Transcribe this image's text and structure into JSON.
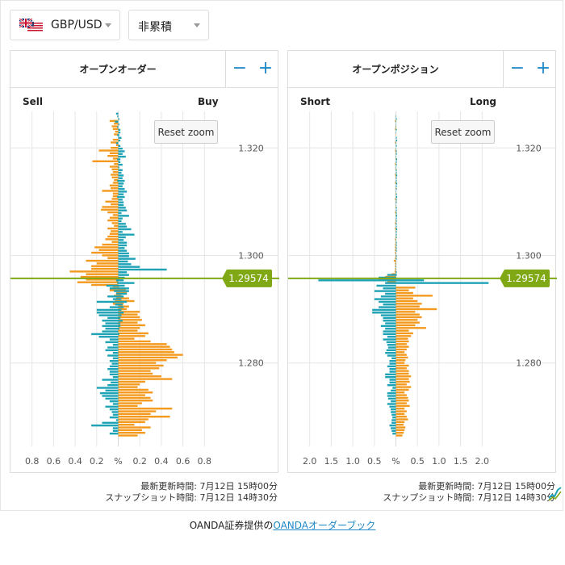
{
  "toolbar": {
    "pair_label": "GBP/USD",
    "mode_label": "非累積",
    "flag_icon": "uk-us-flag-icon"
  },
  "current_price": "1.29574",
  "colors": {
    "teal": "#1ea2b6",
    "orange": "#f39a1e",
    "price_line": "#7fa814",
    "zoom_button": "#1e88c7",
    "grid": "#e6e6e6"
  },
  "order_panel": {
    "title": "オープンオーダー",
    "left_label": "Sell",
    "right_label": "Buy",
    "reset_label": "Reset zoom",
    "minus_label": "−",
    "plus_label": "+",
    "updated": "最新更新時間: 7月12日 15時00分",
    "snapshot": "スナップショット時間: 7月12日 14時30分"
  },
  "position_panel": {
    "title": "オープンポジション",
    "left_label": "Short",
    "right_label": "Long",
    "reset_label": "Reset zoom",
    "minus_label": "−",
    "plus_label": "+",
    "updated": "最新更新時間: 7月12日 15時00分",
    "snapshot": "スナップショット時間: 7月12日 14時30分"
  },
  "footer": {
    "prefix": "OANDA証券提供の",
    "link": "OANDAオーダーブック"
  },
  "chart_data": [
    {
      "type": "bar",
      "orientation": "horizontal",
      "price_axis": {
        "min": 1.2645,
        "max": 1.3268,
        "ticks": [
          "1.320",
          "1.300",
          "1.280"
        ],
        "tick_values": [
          1.32,
          1.3,
          1.28
        ]
      },
      "x_axis": {
        "min": -1.0,
        "max": 1.0,
        "ticks": [
          "0.8",
          "0.6",
          "0.4",
          "0.2",
          "%",
          "0.2",
          "0.4",
          "0.6",
          "0.8"
        ],
        "tick_values": [
          -0.8,
          -0.6,
          -0.4,
          -0.2,
          0,
          0.2,
          0.4,
          0.6,
          0.8
        ]
      },
      "current_price": 1.29574,
      "price_step": 0.0005,
      "price_start": 1.3262,
      "teal_left": [
        0.02,
        0.01,
        0,
        0.03,
        0,
        0.01,
        0,
        0,
        0.01,
        0,
        0,
        0.02,
        0,
        0,
        0,
        0,
        0,
        0.01,
        0,
        0,
        0,
        0,
        0,
        0,
        0,
        0.01,
        0,
        0,
        0,
        0,
        0,
        0.01,
        0,
        0,
        0,
        0,
        0,
        0,
        0,
        0,
        0,
        0,
        0,
        0,
        0,
        0,
        0,
        0,
        0,
        0,
        0,
        0,
        0,
        0,
        0,
        0,
        0,
        0,
        0,
        0,
        0,
        0,
        0.02,
        0.01,
        0.11,
        0.08,
        0.04,
        0.02,
        0.1,
        0.05,
        0.2,
        0.03,
        0.08,
        0.2,
        0.2,
        0.18,
        0.1,
        0.15,
        0.12,
        0.15,
        0.12,
        0.15,
        0.25,
        0.18,
        0.08,
        0.12,
        0.05,
        0.1,
        0.12,
        0.05,
        0.1,
        0.05,
        0.08,
        0.06,
        0.08,
        0.1,
        0.08,
        0.08,
        0.05,
        0.15,
        0.07,
        0.1,
        0.2,
        0.12,
        0.17,
        0.15,
        0.12,
        0.08,
        0.05,
        0.12,
        0.08,
        0.06,
        0.05,
        0.08,
        0.02,
        0.15,
        0.25,
        0.05,
        0.05,
        0.08
      ],
      "teal_right": [
        0,
        0,
        0.01,
        0,
        0.01,
        0,
        0.02,
        0.02,
        0.01,
        0.03,
        0.02,
        0,
        0.02,
        0.04,
        0.06,
        0.04,
        0.07,
        0.02,
        0.02,
        0.04,
        0.01,
        0.04,
        0.03,
        0.05,
        0.04,
        0.06,
        0.05,
        0.04,
        0.06,
        0.08,
        0.05,
        0.06,
        0.04,
        0.05,
        0.05,
        0.07,
        0.08,
        0.03,
        0.1,
        0.04,
        0.03,
        0.07,
        0.08,
        0.12,
        0.04,
        0.15,
        0.07,
        0.05,
        0.08,
        0.08,
        0.06,
        0.08,
        0.1,
        0.1,
        0.16,
        0.09,
        0.12,
        0.2,
        0.45,
        0.08,
        0.1,
        0.06,
        0.05,
        0.15,
        0.06,
        0.1,
        0.1,
        0.08,
        0.05,
        0.03,
        0.08,
        0.04,
        0.05,
        0.03,
        0.05,
        0.03,
        0.02,
        0.04,
        0.02,
        0.02,
        0.01,
        0,
        0.01,
        0,
        0,
        0,
        0,
        0,
        0,
        0,
        0,
        0,
        0,
        0,
        0,
        0,
        0,
        0,
        0,
        0,
        0,
        0,
        0,
        0,
        0,
        0,
        0,
        0,
        0,
        0,
        0,
        0,
        0,
        0,
        0,
        0,
        0,
        0,
        0,
        0
      ],
      "orange_left": [
        0,
        0,
        0.08,
        0.04,
        0.06,
        0.05,
        0.03,
        0.04,
        0,
        0.05,
        0.07,
        0.02,
        0.07,
        0.18,
        0.08,
        0.1,
        0.05,
        0.24,
        0.04,
        0.08,
        0.06,
        0.05,
        0.07,
        0.06,
        0.04,
        0.05,
        0.08,
        0.07,
        0.15,
        0.05,
        0.05,
        0.06,
        0.12,
        0.07,
        0.15,
        0.16,
        0.1,
        0.05,
        0.08,
        0.1,
        0.06,
        0.04,
        0.1,
        0.07,
        0.08,
        0.1,
        0.12,
        0.06,
        0.15,
        0.22,
        0.18,
        0.25,
        0.15,
        0.1,
        0.3,
        0.2,
        0.25,
        0.25,
        0.45,
        0.3,
        0.35,
        0.3,
        0.38,
        0.25,
        0.05,
        0.08,
        0.02,
        0.04,
        0.02,
        0.03,
        0.05,
        0,
        0,
        0,
        0,
        0,
        0,
        0,
        0,
        0,
        0,
        0,
        0,
        0,
        0,
        0,
        0,
        0,
        0,
        0,
        0,
        0,
        0,
        0,
        0,
        0,
        0,
        0,
        0,
        0,
        0,
        0,
        0,
        0,
        0,
        0,
        0,
        0,
        0,
        0,
        0,
        0,
        0,
        0,
        0,
        0,
        0,
        0,
        0,
        0,
        0,
        0
      ],
      "orange_right": [
        0,
        0,
        0,
        0,
        0,
        0,
        0,
        0,
        0,
        0,
        0,
        0,
        0,
        0,
        0,
        0,
        0,
        0,
        0,
        0,
        0,
        0,
        0,
        0,
        0,
        0,
        0,
        0,
        0,
        0,
        0,
        0,
        0,
        0,
        0,
        0,
        0,
        0,
        0,
        0,
        0,
        0,
        0,
        0,
        0,
        0,
        0,
        0,
        0,
        0,
        0,
        0,
        0,
        0,
        0,
        0,
        0,
        0,
        0,
        0,
        0,
        0,
        0,
        0,
        0.01,
        0.07,
        0.08,
        0.03,
        0.1,
        0.15,
        0.05,
        0.1,
        0.08,
        0.2,
        0.18,
        0.2,
        0.22,
        0.18,
        0.25,
        0.2,
        0.18,
        0.28,
        0.25,
        0.15,
        0.3,
        0.45,
        0.48,
        0.5,
        0.52,
        0.6,
        0.55,
        0.45,
        0.35,
        0.42,
        0.38,
        0.3,
        0.32,
        0.4,
        0.5,
        0.25,
        0.2,
        0.18,
        0.28,
        0.32,
        0.25,
        0.3,
        0.32,
        0.22,
        0.18,
        0.5,
        0.35,
        0.3,
        0.48,
        0.28,
        0.25,
        0.15,
        0.3,
        0.22,
        0.25,
        0.18,
        0.2,
        0.12,
        0.25,
        0.22,
        0.15
      ]
    },
    {
      "type": "bar",
      "orientation": "horizontal",
      "price_axis": {
        "min": 1.2645,
        "max": 1.3268,
        "ticks": [
          "1.320",
          "1.300",
          "1.280"
        ],
        "tick_values": [
          1.32,
          1.3,
          1.28
        ]
      },
      "x_axis": {
        "min": -2.5,
        "max": 2.5,
        "ticks": [
          "2.0",
          "1.5",
          "1.0",
          "0.5",
          "%",
          "0.5",
          "1.0",
          "1.5",
          "2.0"
        ],
        "tick_values": [
          -2.0,
          -1.5,
          -1.0,
          -0.5,
          0,
          0.5,
          1.0,
          1.5,
          2.0
        ]
      },
      "current_price": 1.29574,
      "price_step": 0.0005,
      "price_start": 1.3262,
      "teal_left": [
        0,
        0,
        0,
        0,
        0,
        0,
        0,
        0,
        0,
        0,
        0,
        0,
        0,
        0,
        0,
        0,
        0,
        0,
        0,
        0,
        0,
        0,
        0,
        0,
        0,
        0,
        0,
        0,
        0,
        0,
        0,
        0,
        0,
        0,
        0,
        0,
        0,
        0,
        0,
        0,
        0,
        0,
        0,
        0,
        0,
        0,
        0,
        0,
        0,
        0,
        0,
        0,
        0,
        0,
        0,
        0,
        0,
        0,
        0,
        0,
        0.2,
        0.4,
        1.8,
        0.25,
        0.45,
        0.3,
        0.5,
        0.25,
        0.35,
        0.5,
        0.4,
        0.3,
        0.4,
        0.55,
        0.55,
        0.35,
        0.3,
        0.3,
        0.25,
        0.35,
        0.25,
        0.3,
        0.3,
        0.2,
        0.3,
        0.22,
        0.2,
        0.18,
        0.22,
        0.25,
        0.2,
        0.1,
        0.15,
        0.15,
        0.2,
        0.15,
        0.15,
        0.25,
        0.25,
        0.15,
        0.15,
        0.2,
        0.08,
        0.12,
        0.2,
        0.2,
        0.18,
        0.12,
        0.2,
        0.15,
        0.12,
        0.12,
        0.1,
        0.08,
        0.1,
        0.1,
        0.15,
        0.12,
        0.1,
        0.08
      ],
      "teal_right": [
        0,
        0.01,
        0.02,
        0.01,
        0.01,
        0.01,
        0.02,
        0.01,
        0,
        0.02,
        0.03,
        0.01,
        0.02,
        0.01,
        0.02,
        0.02,
        0.01,
        0.03,
        0.02,
        0.02,
        0.01,
        0.02,
        0.02,
        0.03,
        0.02,
        0.02,
        0.03,
        0.02,
        0.02,
        0.01,
        0.02,
        0.03,
        0.02,
        0.02,
        0.01,
        0.02,
        0.02,
        0.02,
        0.03,
        0.02,
        0.02,
        0.02,
        0.02,
        0.03,
        0.02,
        0.02,
        0.02,
        0.01,
        0.02,
        0.02,
        0.02,
        0.02,
        0.01,
        0.02,
        0.02,
        0.01,
        0.01,
        0.01,
        0.01,
        0.02,
        0.02,
        0.01,
        0.65,
        2.15,
        0,
        0,
        0,
        0,
        0,
        0,
        0,
        0,
        0,
        0,
        0,
        0,
        0,
        0,
        0,
        0,
        0,
        0,
        0,
        0,
        0,
        0,
        0,
        0,
        0,
        0,
        0,
        0,
        0,
        0,
        0,
        0,
        0,
        0,
        0,
        0,
        0,
        0,
        0,
        0,
        0,
        0,
        0,
        0,
        0,
        0,
        0,
        0,
        0,
        0,
        0,
        0,
        0,
        0,
        0
      ],
      "orange_left": [
        0,
        0,
        0.02,
        0,
        0.01,
        0.02,
        0,
        0.01,
        0,
        0,
        0.02,
        0,
        0,
        0.02,
        0.01,
        0,
        0.01,
        0,
        0.02,
        0,
        0.01,
        0,
        0.02,
        0.01,
        0,
        0.02,
        0,
        0.01,
        0,
        0.01,
        0,
        0.02,
        0.01,
        0,
        0.01,
        0,
        0.02,
        0.01,
        0,
        0.01,
        0.02,
        0,
        0.02,
        0.01,
        0,
        0.01,
        0.02,
        0.01,
        0.02,
        0.02,
        0.02,
        0.02,
        0.01,
        0.02,
        0.05,
        0.02,
        0.02,
        0.02,
        0.03,
        0.1,
        0.25,
        0.4,
        0.2,
        0,
        0,
        0,
        0,
        0,
        0,
        0,
        0,
        0,
        0,
        0,
        0,
        0,
        0,
        0,
        0,
        0,
        0,
        0,
        0,
        0,
        0,
        0,
        0,
        0,
        0,
        0,
        0,
        0,
        0,
        0,
        0,
        0,
        0,
        0,
        0,
        0,
        0,
        0,
        0,
        0,
        0,
        0,
        0,
        0,
        0,
        0,
        0,
        0,
        0,
        0,
        0,
        0,
        0,
        0,
        0,
        0,
        0
      ],
      "orange_right": [
        0,
        0,
        0,
        0,
        0,
        0,
        0,
        0,
        0,
        0,
        0,
        0,
        0,
        0,
        0,
        0,
        0,
        0,
        0,
        0,
        0,
        0,
        0,
        0,
        0,
        0,
        0,
        0,
        0,
        0,
        0,
        0,
        0,
        0,
        0,
        0,
        0,
        0,
        0,
        0,
        0,
        0,
        0,
        0,
        0,
        0,
        0,
        0,
        0,
        0,
        0,
        0,
        0,
        0,
        0,
        0,
        0,
        0,
        0,
        0,
        0,
        0,
        0,
        0,
        0.45,
        0.3,
        0.4,
        0.85,
        0.4,
        0.5,
        0.6,
        0.55,
        0.95,
        0.45,
        0.55,
        0.6,
        0.5,
        0.55,
        0.45,
        0.7,
        0.3,
        0.4,
        0.35,
        0.28,
        0.3,
        0.25,
        0.3,
        0.25,
        0.2,
        0.25,
        0.28,
        0.22,
        0.2,
        0.3,
        0.25,
        0.3,
        0.3,
        0.35,
        0.3,
        0.32,
        0.25,
        0.35,
        0.3,
        0.2,
        0.25,
        0.28,
        0.3,
        0.25,
        0.32,
        0.2,
        0.25,
        0.2,
        0.25,
        0.28,
        0.2,
        0.18,
        0.22,
        0.2,
        0.18,
        0.15
      ]
    }
  ]
}
